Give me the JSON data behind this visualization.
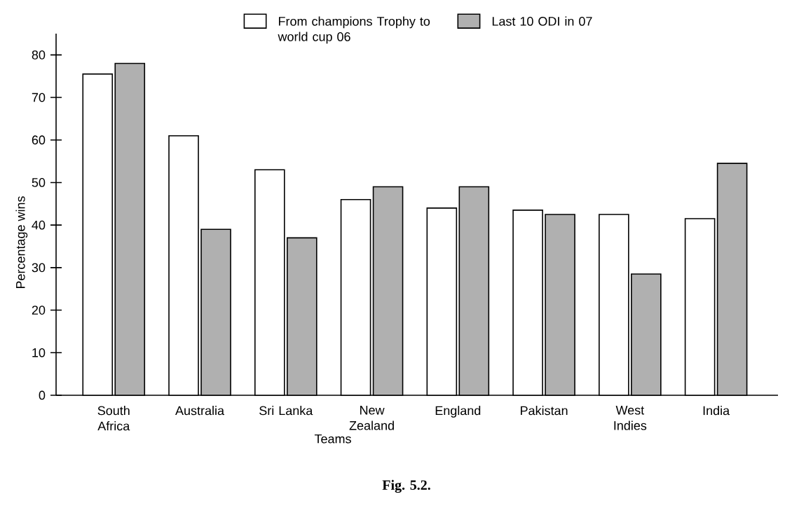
{
  "chart_data": {
    "type": "bar",
    "categories": [
      "South Africa",
      "Australia",
      "Sri Lanka",
      "New Zealand",
      "England",
      "Pakistan",
      "West Indies",
      "India"
    ],
    "series": [
      {
        "name": "From champions Trophy to world cup 06",
        "color": "#ffffff",
        "values": [
          75.5,
          61,
          53,
          46,
          44,
          43.5,
          42.5,
          41.5
        ]
      },
      {
        "name": "Last 10 ODI in 07",
        "color": "#b0b0b0",
        "values": [
          78,
          39,
          37,
          49,
          49,
          42.5,
          28.5,
          54.5
        ]
      }
    ],
    "xlabel": "Teams",
    "ylabel": "Percentage wins",
    "ylim": [
      0,
      85
    ],
    "yticks": [
      0,
      10,
      20,
      30,
      40,
      50,
      60,
      70,
      80
    ],
    "grid": false,
    "legend": "top",
    "annotations": [
      "Fig. 5.2."
    ]
  }
}
